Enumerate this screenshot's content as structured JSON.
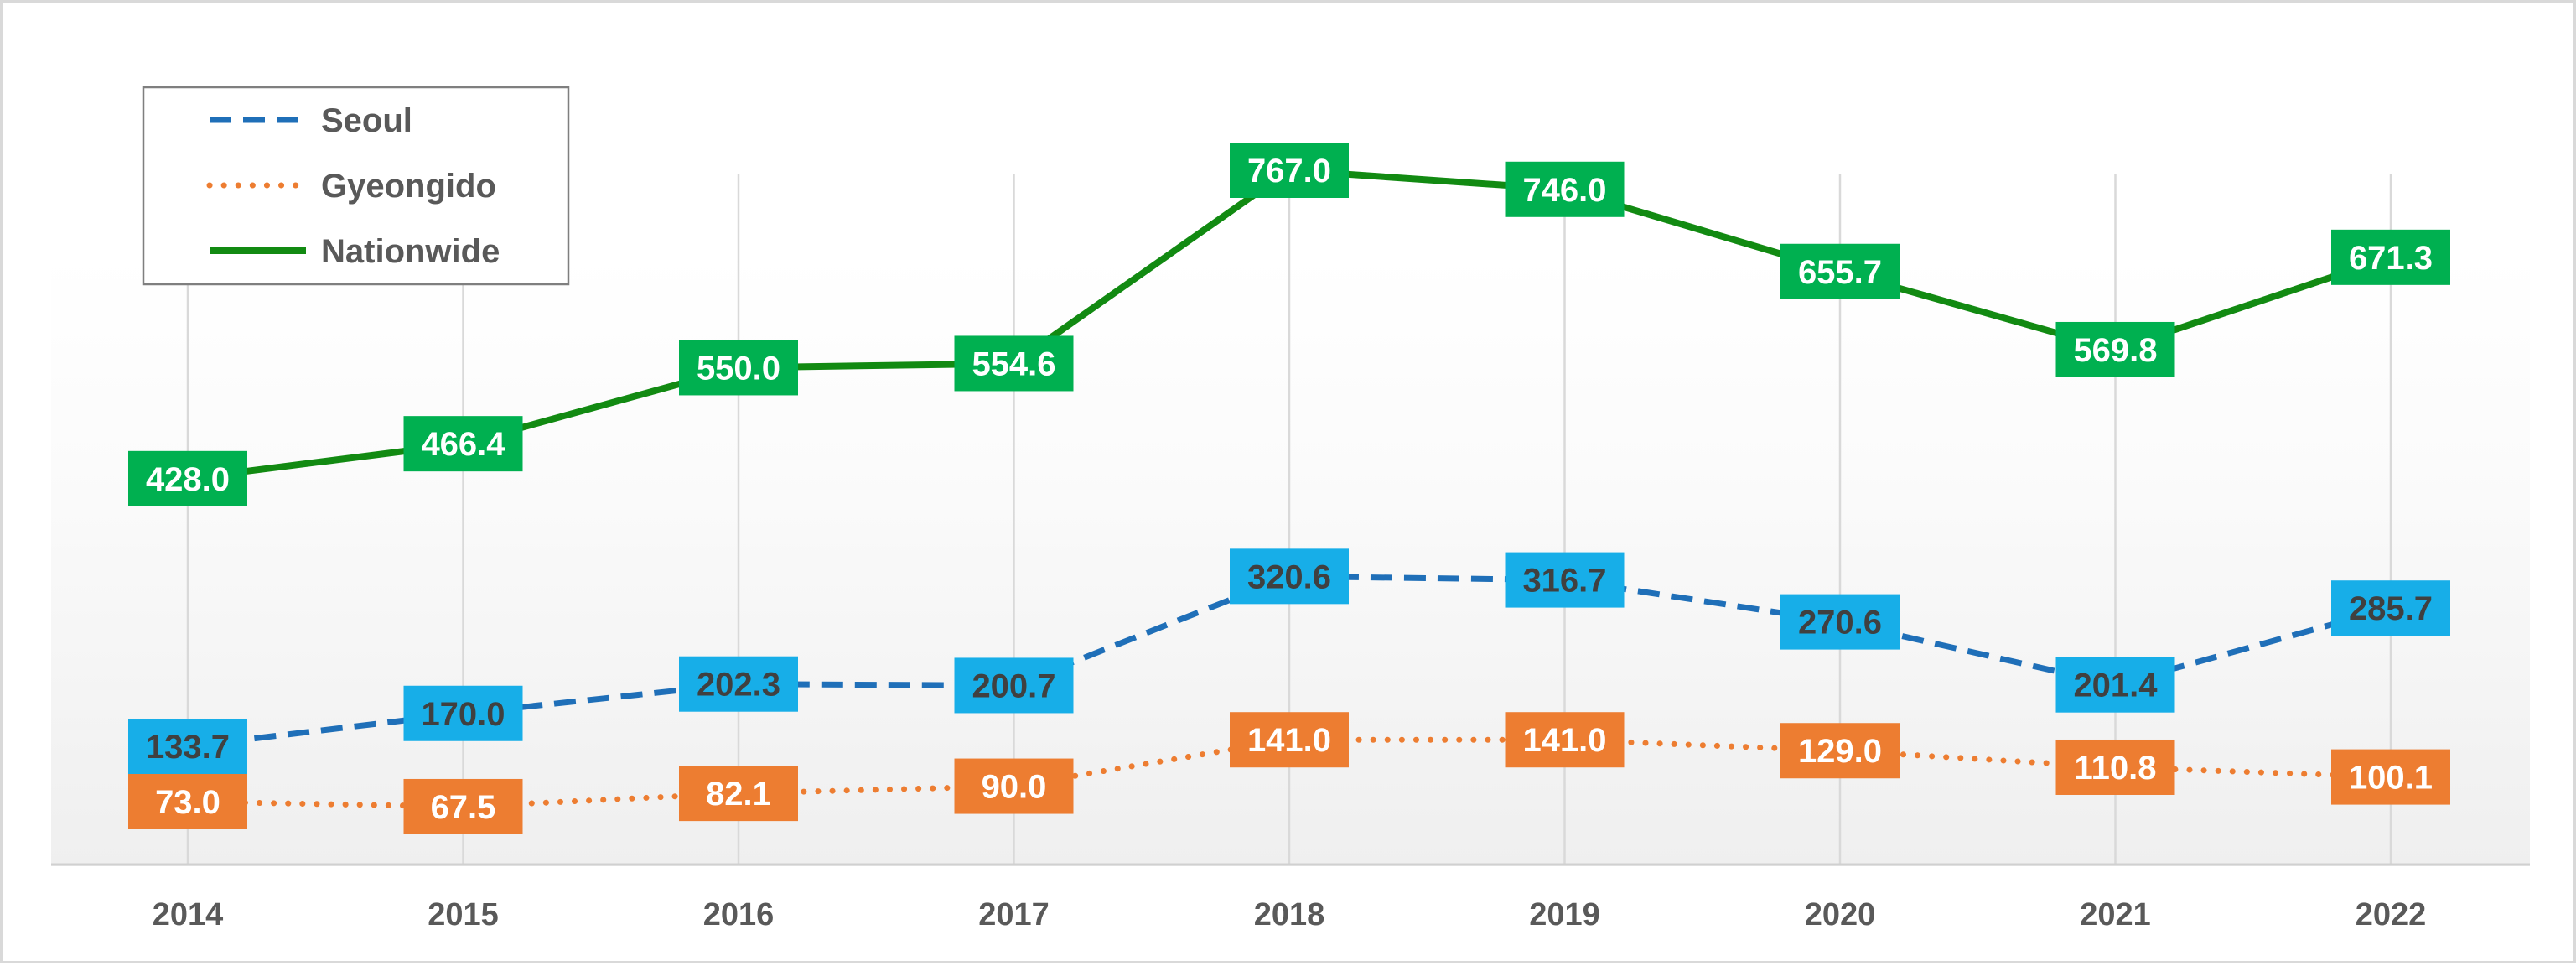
{
  "chart_data": {
    "type": "line",
    "title": "",
    "xlabel": "",
    "ylabel": "",
    "categories": [
      "2014",
      "2015",
      "2016",
      "2017",
      "2018",
      "2019",
      "2020",
      "2021",
      "2022"
    ],
    "ylim": [
      0,
      800
    ],
    "grid": "vertical",
    "legend": {
      "placement": "top-left"
    },
    "series": [
      {
        "name": "Seoul",
        "values": [
          133.7,
          170.0,
          202.3,
          200.7,
          320.6,
          316.7,
          270.6,
          201.4,
          285.7
        ],
        "labels": [
          "133.7",
          "170.0",
          "202.3",
          "200.7",
          "320.6",
          "316.7",
          "270.6",
          "201.4",
          "285.7"
        ],
        "line_color": "#1f6fb8",
        "line_style": "dashed",
        "label_bg": "#17aee8",
        "label_color": "#404040"
      },
      {
        "name": "Gyeongido",
        "values": [
          73.0,
          67.5,
          82.1,
          90.0,
          141.0,
          141.0,
          129.0,
          110.8,
          100.1
        ],
        "labels": [
          "73.0",
          "67.5",
          "82.1",
          "90.0",
          "141.0",
          "141.0",
          "129.0",
          "110.8",
          "100.1"
        ],
        "line_color": "#ed7d31",
        "line_style": "dotted",
        "label_bg": "#ed7d31",
        "label_color": "#ffffff"
      },
      {
        "name": "Nationwide",
        "values": [
          428.0,
          466.4,
          550.0,
          554.6,
          767.0,
          746.0,
          655.7,
          569.8,
          671.3
        ],
        "labels": [
          "428.0",
          "466.4",
          "550.0",
          "554.6",
          "767.0",
          "746.0",
          "655.7",
          "569.8",
          "671.3"
        ],
        "line_color": "#128a12",
        "line_style": "solid",
        "label_bg": "#00b050",
        "label_color": "#ffffff"
      }
    ]
  }
}
